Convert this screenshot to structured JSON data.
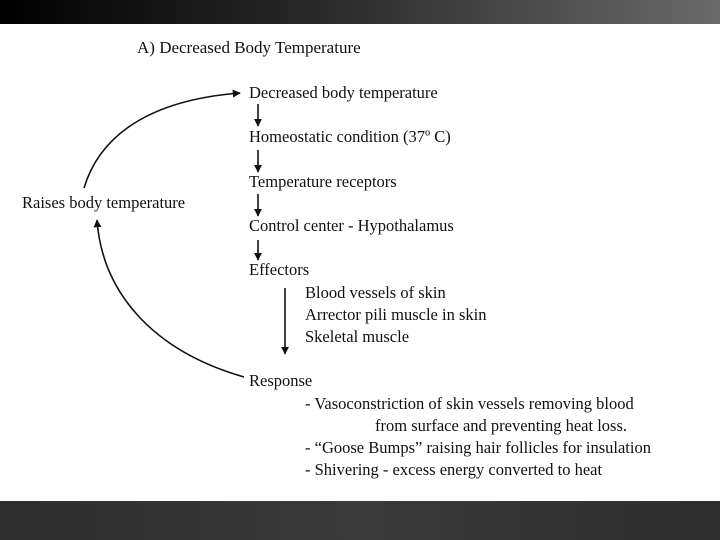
{
  "diagram": {
    "title": "A) Decreased Body Temperature",
    "stimulus": "Decreased body temperature",
    "steps": [
      "Homeostatic condition  (37º C)",
      "Temperature receptors",
      "Control center - Hypothalamus",
      "Effectors"
    ],
    "effectors": [
      "Blood vessels of skin",
      "Arrector pili muscle in skin",
      "Skeletal muscle"
    ],
    "response_label": "Response",
    "response_items": [
      "- Vasoconstriction of skin vessels removing blood",
      "from surface and preventing heat loss.",
      "- “Goose Bumps” raising hair follicles for insulation",
      "- Shivering - excess energy converted to heat"
    ],
    "feedback_label": "Raises body temperature"
  }
}
